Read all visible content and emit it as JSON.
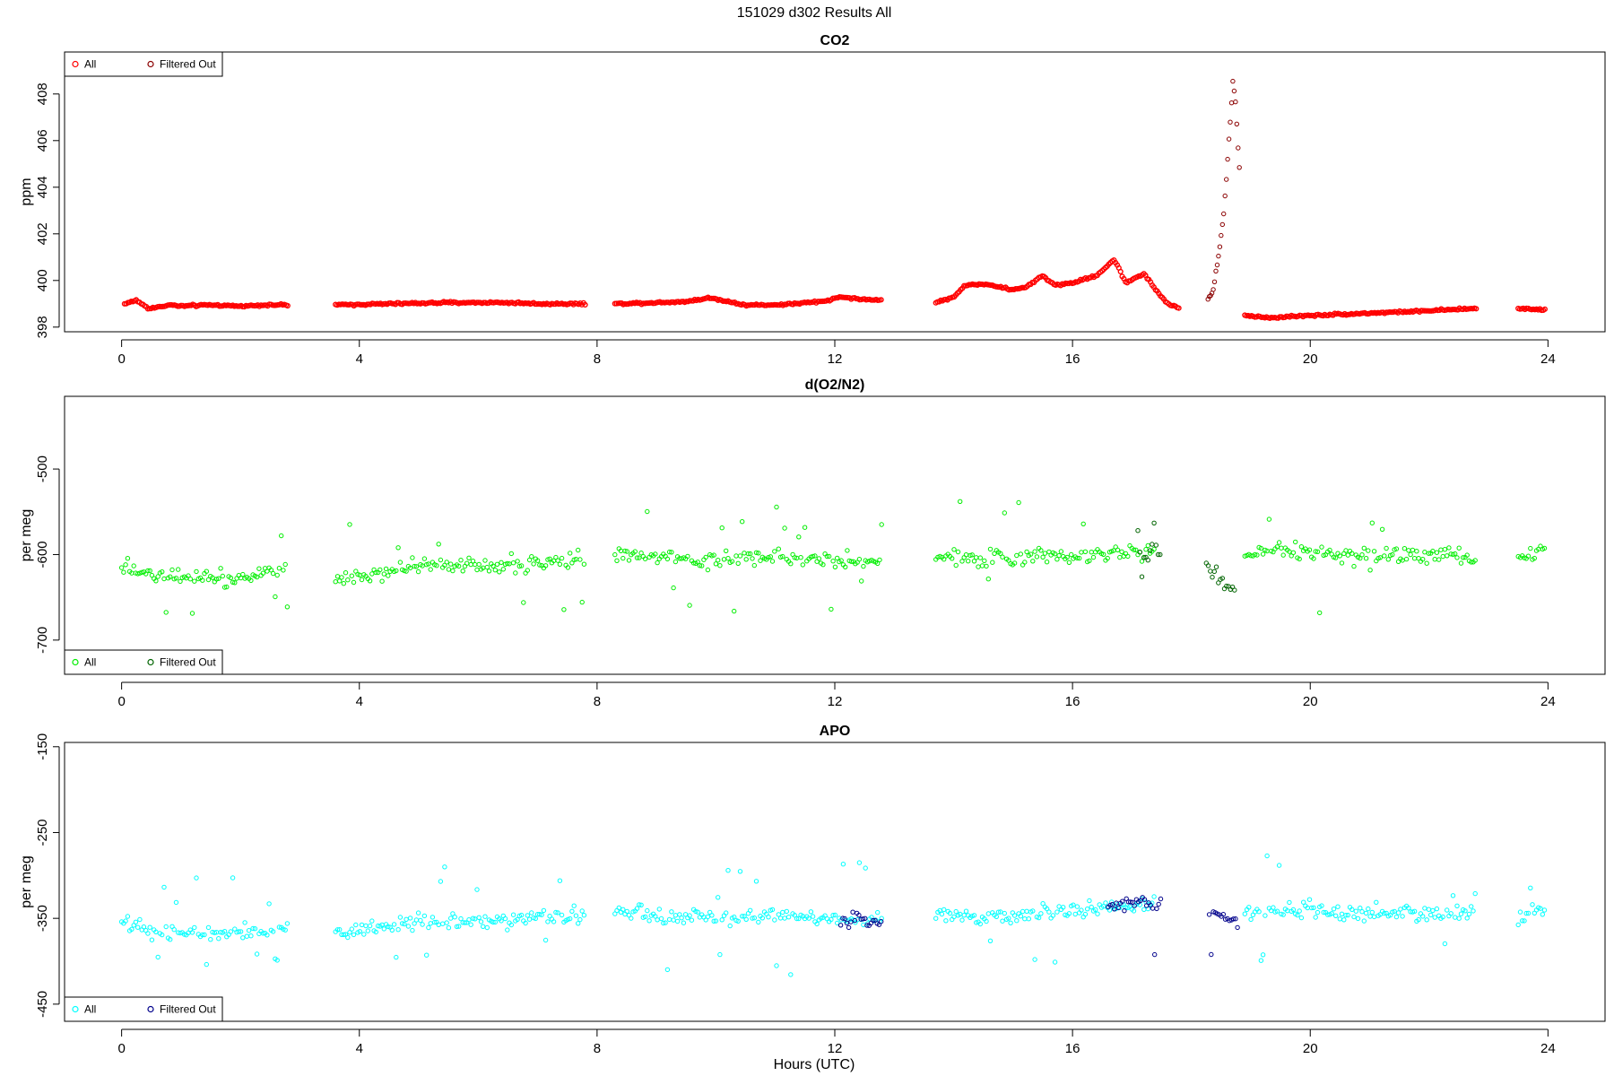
{
  "figure": {
    "suptitle": "151029   d302   Results All",
    "xlabel": "Hours (UTC)"
  },
  "chart_data": [
    {
      "type": "scatter",
      "title": "CO2",
      "ylabel": "ppm",
      "xlim": [
        -0.96,
        24.96
      ],
      "ylim": [
        397.8,
        409.8
      ],
      "xticks": [
        0,
        4,
        8,
        12,
        16,
        20,
        24
      ],
      "yticks": [
        398,
        400,
        402,
        404,
        406,
        408
      ],
      "legend_position": "top-left",
      "colors": {
        "all": "#ff0000",
        "filtered": "#8b0000"
      },
      "series": [
        {
          "name": "All",
          "segments": [
            {
              "x": [
                0.05,
                0.25,
                0.45,
                0.6,
                0.8,
                1.0,
                1.5,
                2.0,
                2.4,
                2.8
              ],
              "y": [
                399.0,
                399.15,
                398.8,
                398.85,
                398.95,
                398.9,
                398.95,
                398.9,
                398.95,
                398.95
              ]
            },
            {
              "x": [
                3.6,
                4.5,
                5.5,
                6.5,
                7.0,
                7.8
              ],
              "y": [
                398.95,
                399.0,
                399.05,
                399.05,
                399.0,
                399.0
              ]
            },
            {
              "x": [
                8.3,
                9.0,
                9.5,
                9.9,
                10.5,
                11.0,
                11.3,
                11.8,
                12.1,
                12.4,
                12.8
              ],
              "y": [
                399.0,
                399.05,
                399.1,
                399.25,
                398.95,
                398.95,
                399.0,
                399.1,
                399.3,
                399.2,
                399.15
              ]
            },
            {
              "x": [
                13.7,
                14.0,
                14.2,
                14.5,
                14.8,
                15.0,
                15.2,
                15.5,
                15.7,
                16.0,
                16.4,
                16.7,
                16.9,
                17.2,
                17.4,
                17.6,
                17.8
              ],
              "y": [
                399.05,
                399.3,
                399.8,
                399.85,
                399.7,
                399.6,
                399.7,
                400.2,
                399.8,
                399.9,
                400.2,
                400.9,
                399.9,
                400.3,
                399.6,
                399.0,
                398.8
              ]
            },
            {
              "x": [
                18.9,
                19.3,
                20.0,
                21.0,
                22.0,
                22.8
              ],
              "y": [
                398.5,
                398.4,
                398.5,
                398.6,
                398.7,
                398.8
              ]
            },
            {
              "x": [
                23.5,
                23.95
              ],
              "y": [
                398.8,
                398.75
              ]
            }
          ]
        },
        {
          "name": "Filtered Out",
          "segments": [
            {
              "x": [
                18.28,
                18.36,
                18.42,
                18.48,
                18.54,
                18.58,
                18.62,
                18.66,
                18.7,
                18.74,
                18.78,
                18.82
              ],
              "y": [
                399.2,
                399.5,
                400.5,
                401.5,
                402.8,
                404.0,
                405.6,
                407.0,
                408.6,
                407.8,
                406.0,
                404.3
              ]
            }
          ]
        }
      ]
    },
    {
      "type": "scatter",
      "title": "d(O2/N2)",
      "ylabel": "per meg",
      "xlim": [
        -0.96,
        24.96
      ],
      "ylim": [
        -740,
        -415
      ],
      "xticks": [
        0,
        4,
        8,
        12,
        16,
        20,
        24
      ],
      "yticks": [
        -700,
        -600,
        -500
      ],
      "legend_position": "bottom-left",
      "colors": {
        "all": "#00ee00",
        "filtered": "#006400"
      },
      "series": [
        {
          "name": "All",
          "segments": [
            {
              "x": [
                0.0,
                0.6,
                1.2,
                1.8,
                2.4,
                2.8
              ],
              "y": [
                -612,
                -625,
                -622,
                -628,
                -622,
                -615
              ]
            },
            {
              "x": [
                3.6,
                4.4,
                5.0,
                5.8,
                6.6,
                7.2,
                7.8
              ],
              "y": [
                -628,
                -620,
                -612,
                -615,
                -612,
                -610,
                -605
              ]
            },
            {
              "x": [
                8.3,
                9.0,
                9.8,
                10.5,
                11.2,
                11.8,
                12.3,
                12.8
              ],
              "y": [
                -600,
                -603,
                -607,
                -605,
                -603,
                -605,
                -607,
                -610
              ]
            },
            {
              "x": [
                13.7,
                14.4,
                15.0,
                15.6,
                16.2,
                16.8,
                17.4
              ],
              "y": [
                -602,
                -605,
                -605,
                -600,
                -600,
                -598,
                -595
              ]
            },
            {
              "x": [
                18.9,
                19.5,
                20.0,
                20.6,
                21.2,
                21.8,
                22.4,
                22.8
              ],
              "y": [
                -600,
                -595,
                -598,
                -602,
                -600,
                -602,
                -600,
                -605
              ]
            },
            {
              "x": [
                23.5,
                23.95
              ],
              "y": [
                -600,
                -595
              ]
            }
          ]
        },
        {
          "name": "Filtered Out",
          "segments": [
            {
              "x": [
                17.1,
                17.3,
                17.5
              ],
              "y": [
                -598,
                -595,
                -600
              ]
            },
            {
              "x": [
                18.25,
                18.5,
                18.75
              ],
              "y": [
                -605,
                -635,
                -645
              ]
            }
          ]
        }
      ]
    },
    {
      "type": "scatter",
      "title": "APO",
      "ylabel": "per meg",
      "xlim": [
        -0.96,
        24.96
      ],
      "ylim": [
        -470,
        -145
      ],
      "xticks": [
        0,
        4,
        8,
        12,
        16,
        20,
        24
      ],
      "yticks": [
        -450,
        -350,
        -250,
        -150
      ],
      "legend_position": "bottom-left",
      "colors": {
        "all": "#00ffff",
        "filtered": "#00008b"
      },
      "series": [
        {
          "name": "All",
          "segments": [
            {
              "x": [
                0.0,
                0.6,
                1.2,
                1.8,
                2.4,
                2.8
              ],
              "y": [
                -355,
                -368,
                -365,
                -370,
                -365,
                -358
              ]
            },
            {
              "x": [
                3.6,
                4.4,
                5.0,
                5.8,
                6.6,
                7.2,
                7.8
              ],
              "y": [
                -368,
                -360,
                -352,
                -356,
                -352,
                -350,
                -345
              ]
            },
            {
              "x": [
                8.3,
                9.0,
                9.8,
                10.5,
                11.2,
                11.8,
                12.3,
                12.8
              ],
              "y": [
                -342,
                -347,
                -350,
                -348,
                -346,
                -350,
                -350,
                -352
              ]
            },
            {
              "x": [
                13.7,
                14.4,
                15.0,
                15.6,
                16.2,
                16.8,
                17.4
              ],
              "y": [
                -345,
                -348,
                -348,
                -340,
                -340,
                -338,
                -335
              ]
            },
            {
              "x": [
                18.9,
                19.5,
                20.0,
                20.6,
                21.2,
                21.8,
                22.4,
                22.8
              ],
              "y": [
                -343,
                -338,
                -340,
                -345,
                -343,
                -345,
                -343,
                -348
              ]
            },
            {
              "x": [
                23.5,
                23.95
              ],
              "y": [
                -348,
                -340
              ]
            }
          ]
        },
        {
          "name": "Filtered Out",
          "segments": [
            {
              "x": [
                12.1,
                12.8
              ],
              "y": [
                -350,
                -352
              ]
            },
            {
              "x": [
                16.6,
                17.2,
                17.5
              ],
              "y": [
                -336,
                -330,
                -335
              ]
            },
            {
              "x": [
                18.3,
                18.8
              ],
              "y": [
                -340,
                -355
              ]
            }
          ]
        }
      ]
    }
  ]
}
